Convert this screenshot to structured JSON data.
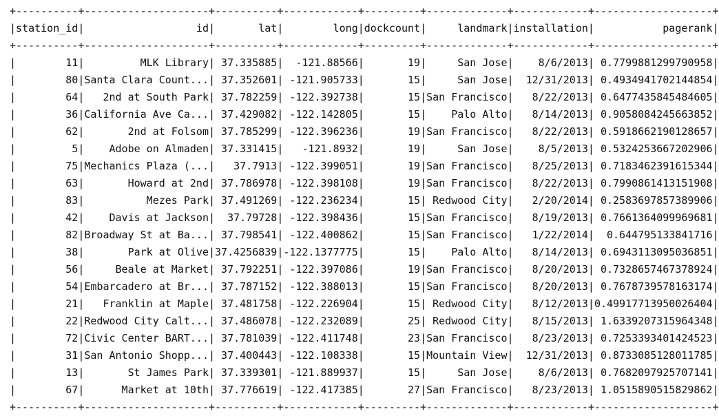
{
  "table": {
    "columns": [
      "station_id",
      "id",
      "lat",
      "long",
      "dockcount",
      "landmark",
      "installation",
      "pagerank"
    ],
    "rows": [
      [
        "11",
        "MLK Library",
        "37.335885",
        "-121.88566",
        "19",
        "San Jose",
        "8/6/2013",
        "0.7799881299790958"
      ],
      [
        "80",
        "Santa Clara Count...",
        "37.352601",
        "-121.905733",
        "15",
        "San Jose",
        "12/31/2013",
        "0.4934941702144854"
      ],
      [
        "64",
        "2nd at South Park",
        "37.782259",
        "-122.392738",
        "15",
        "San Francisco",
        "8/22/2013",
        "0.6477435845484605"
      ],
      [
        "36",
        "California Ave Ca...",
        "37.429082",
        "-122.142805",
        "15",
        "Palo Alto",
        "8/14/2013",
        "0.9058084245663852"
      ],
      [
        "62",
        "2nd at Folsom",
        "37.785299",
        "-122.396236",
        "19",
        "San Francisco",
        "8/22/2013",
        "0.5918662190128657"
      ],
      [
        "5",
        "Adobe on Almaden",
        "37.331415",
        "-121.8932",
        "19",
        "San Jose",
        "8/5/2013",
        "0.5324253667202906"
      ],
      [
        "75",
        "Mechanics Plaza (...",
        "37.7913",
        "-122.399051",
        "19",
        "San Francisco",
        "8/25/2013",
        "0.7183462391615344"
      ],
      [
        "63",
        "Howard at 2nd",
        "37.786978",
        "-122.398108",
        "19",
        "San Francisco",
        "8/22/2013",
        "0.7990861413151908"
      ],
      [
        "83",
        "Mezes Park",
        "37.491269",
        "-122.236234",
        "15",
        "Redwood City",
        "2/20/2014",
        "0.2583697857389906"
      ],
      [
        "42",
        "Davis at Jackson",
        "37.79728",
        "-122.398436",
        "15",
        "San Francisco",
        "8/19/2013",
        "0.7661364099969681"
      ],
      [
        "82",
        "Broadway St at Ba...",
        "37.798541",
        "-122.400862",
        "15",
        "San Francisco",
        "1/22/2014",
        "0.644795133841716"
      ],
      [
        "38",
        "Park at Olive",
        "37.4256839",
        "-122.1377775",
        "15",
        "Palo Alto",
        "8/14/2013",
        "0.6943113095036851"
      ],
      [
        "56",
        "Beale at Market",
        "37.792251",
        "-122.397086",
        "19",
        "San Francisco",
        "8/20/2013",
        "0.7328657467378924"
      ],
      [
        "54",
        "Embarcadero at Br...",
        "37.787152",
        "-122.388013",
        "15",
        "San Francisco",
        "8/20/2013",
        "0.7678739578163174"
      ],
      [
        "21",
        "Franklin at Maple",
        "37.481758",
        "-122.226904",
        "15",
        "Redwood City",
        "8/12/2013",
        "0.49917713950026404"
      ],
      [
        "22",
        "Redwood City Calt...",
        "37.486078",
        "-122.232089",
        "25",
        "Redwood City",
        "8/15/2013",
        "1.6339207315964348"
      ],
      [
        "72",
        "Civic Center BART...",
        "37.781039",
        "-122.411748",
        "23",
        "San Francisco",
        "8/23/2013",
        "0.7253393401424523"
      ],
      [
        "31",
        "San Antonio Shopp...",
        "37.400443",
        "-122.108338",
        "15",
        "Mountain View",
        "12/31/2013",
        "0.8733085128011785"
      ],
      [
        "13",
        "St James Park",
        "37.339301",
        "-121.889937",
        "15",
        "San Jose",
        "8/6/2013",
        "0.7682097925707141"
      ],
      [
        "67",
        "Market at 10th",
        "37.776619",
        "-122.417385",
        "27",
        "San Francisco",
        "8/23/2013",
        "1.0515890515829862"
      ]
    ]
  }
}
